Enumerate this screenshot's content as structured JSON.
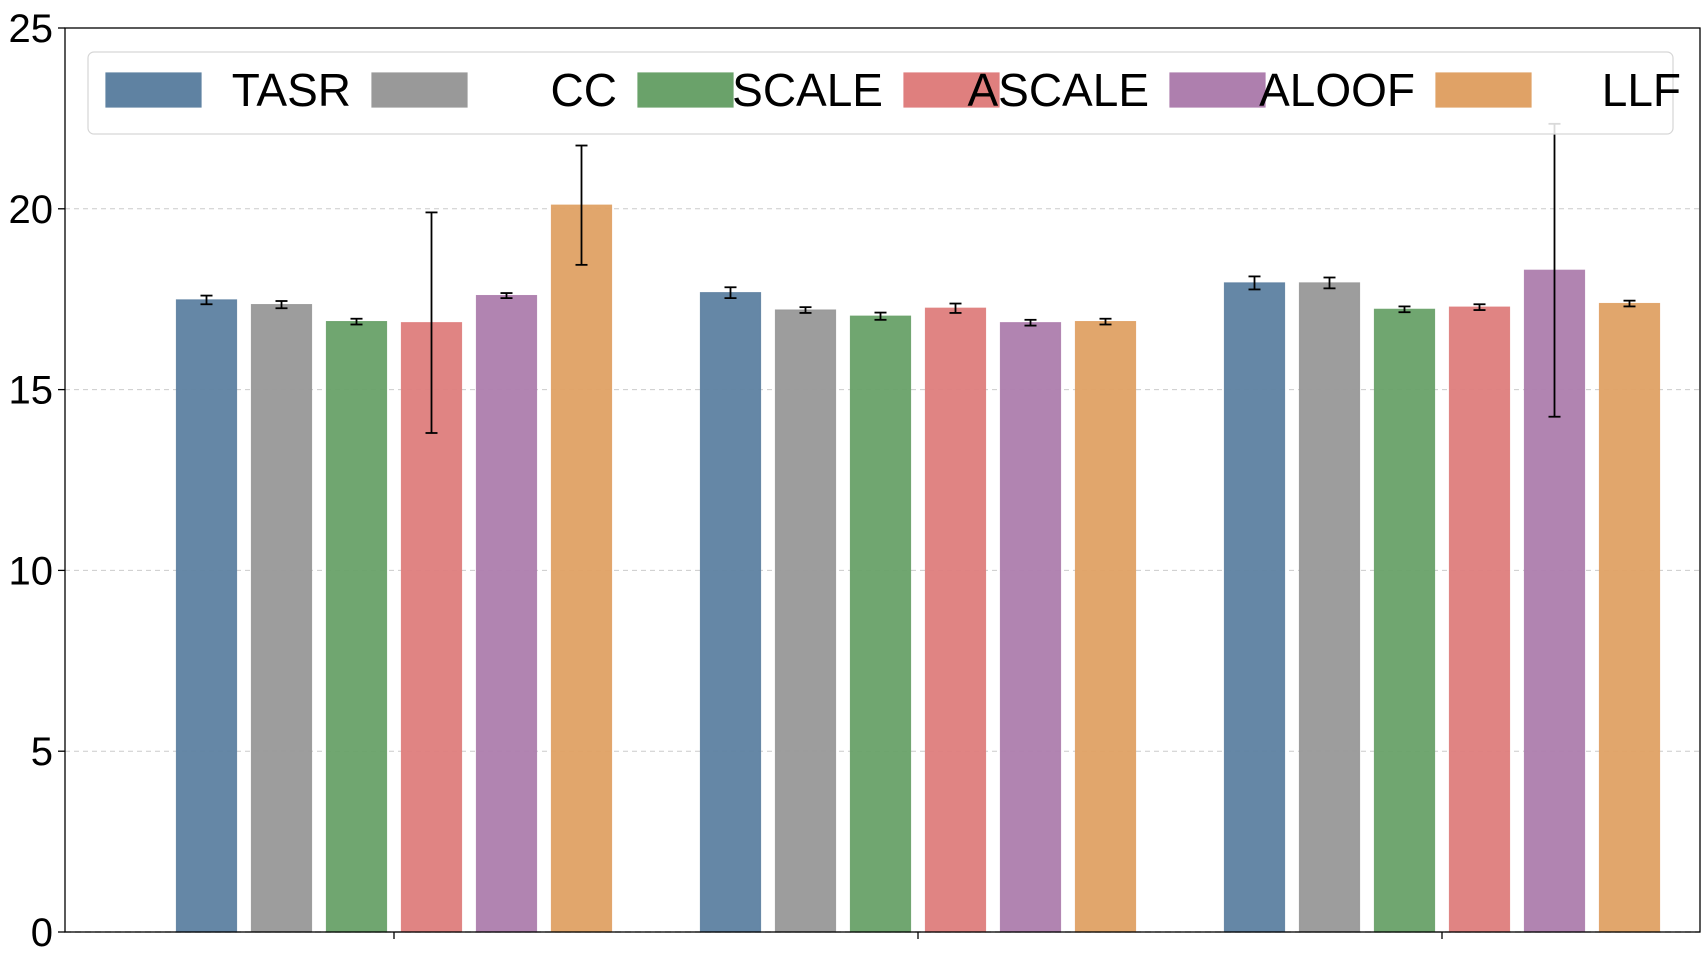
{
  "chart_data": {
    "type": "bar",
    "title": "",
    "xlabel": "",
    "ylabel": "",
    "categories": [
      "",
      "",
      ""
    ],
    "ylim": [
      0,
      25
    ],
    "yticks": [
      0,
      5,
      10,
      15,
      20,
      25
    ],
    "grid": "horizontal dashed",
    "legend_position": "top, single row",
    "series": [
      {
        "name": "TASR",
        "color": "#5f82a2",
        "values": [
          17.48,
          17.68,
          17.95
        ],
        "errors": [
          0.12,
          0.15,
          0.18
        ]
      },
      {
        "name": "CC",
        "color": "#999999",
        "values": [
          17.35,
          17.2,
          17.95
        ],
        "errors": [
          0.1,
          0.08,
          0.15
        ]
      },
      {
        "name": "SCALE",
        "color": "#6aa26a",
        "values": [
          16.88,
          17.03,
          17.22
        ],
        "errors": [
          0.08,
          0.1,
          0.08
        ]
      },
      {
        "name": "ASCALE",
        "color": "#df7f7e",
        "values": [
          16.85,
          17.25,
          17.28
        ],
        "errors": [
          3.05,
          0.13,
          0.08
        ]
      },
      {
        "name": "ALOOF",
        "color": "#ae7fae",
        "values": [
          17.6,
          16.85,
          18.3
        ],
        "errors": [
          0.07,
          0.08,
          4.05
        ]
      },
      {
        "name": "LLF",
        "color": "#e0a266",
        "values": [
          20.1,
          16.88,
          17.38
        ],
        "errors": [
          1.65,
          0.08,
          0.08
        ]
      }
    ]
  }
}
